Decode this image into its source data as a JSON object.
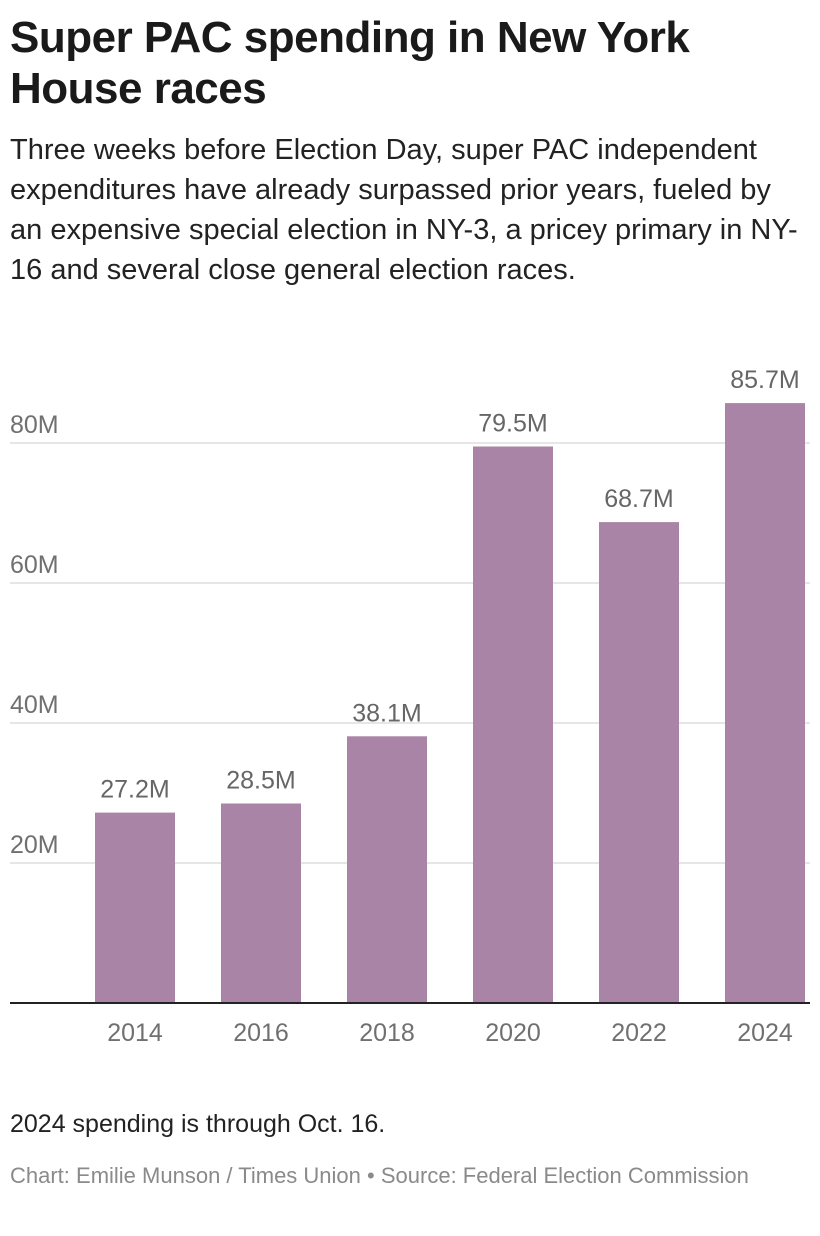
{
  "title": "Super PAC spending in New York House races",
  "subtitle": "Three weeks before Election Day, super PAC independent expenditures have already surpassed prior years, fueled by an expensive special election in NY-3, a pricey primary in NY-16 and several close general election races.",
  "note": "2024 spending is through Oct. 16.",
  "credit": {
    "chart_by": "Chart: Emilie Munson / Times Union",
    "separator": "•",
    "source": "Source: Federal Election Commission"
  },
  "colors": {
    "bar": "#a984a6",
    "axis_text": "#707070",
    "label_text": "#666666",
    "grid": "#dddddd",
    "baseline": "#222222"
  },
  "chart_data": {
    "type": "bar",
    "title": "Super PAC spending in New York House races",
    "categories": [
      "2014",
      "2016",
      "2018",
      "2020",
      "2022",
      "2024"
    ],
    "values": [
      27.2,
      28.5,
      38.1,
      79.5,
      68.7,
      85.7
    ],
    "data_labels": [
      "27.2M",
      "28.5M",
      "38.1M",
      "79.5M",
      "68.7M",
      "85.7M"
    ],
    "unit": "M",
    "yticks": [
      20,
      40,
      60,
      80
    ],
    "ytick_labels": [
      "20M",
      "40M",
      "60M",
      "80M"
    ],
    "ylim": [
      0,
      90
    ],
    "grid": true,
    "xlabel": "",
    "ylabel": ""
  }
}
